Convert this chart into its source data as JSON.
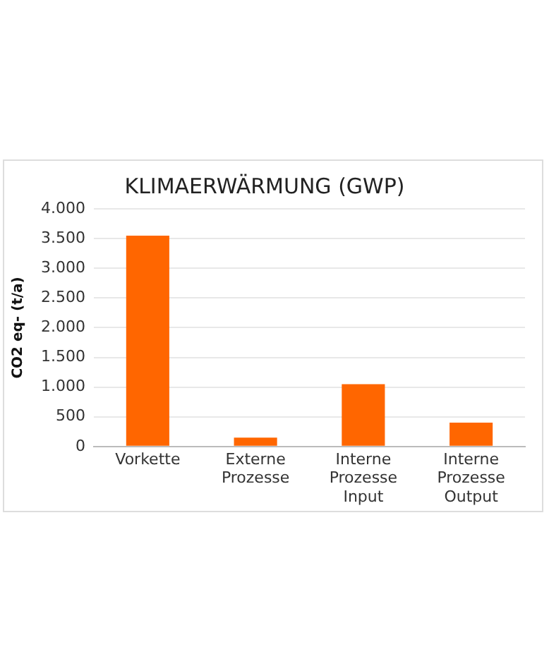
{
  "chart_data": {
    "type": "bar",
    "title": "KLIMAERWÄRMUNG (GWP)",
    "ylabel": "CO2 eq- (t/a)",
    "categories": [
      "Vorkette",
      "Externe Prozesse",
      "Interne Prozesse Input",
      "Interne Prozesse Output"
    ],
    "values": [
      3550,
      150,
      1050,
      400
    ],
    "color": "#ff6600",
    "ylim": [
      0,
      4000
    ],
    "yticks": [
      0,
      500,
      {
        "value": 1000,
        "label": "1.000"
      },
      {
        "value": 1500,
        "label": "1.500"
      },
      {
        "value": 2000,
        "label": "2.000"
      },
      {
        "value": 2500,
        "label": "2.500"
      },
      {
        "value": 3000,
        "label": "3.000"
      },
      {
        "value": 3500,
        "label": "3.500"
      },
      {
        "value": 4000,
        "label": "4.000"
      }
    ],
    "grid": "y",
    "legend": false
  }
}
